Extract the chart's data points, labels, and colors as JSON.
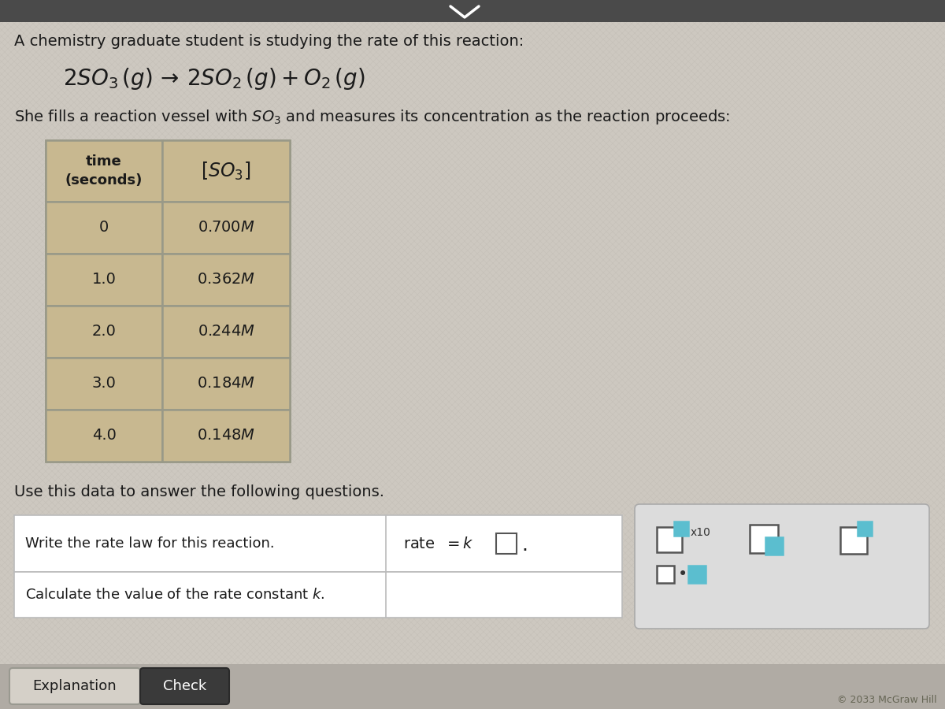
{
  "bg_color": "#cdc8c0",
  "text_color": "#1a1a1a",
  "intro_text": "A chemistry graduate student is studying the rate of this reaction:",
  "table_header_time": "time\n(seconds)",
  "table_data": [
    [
      "0",
      "0.700"
    ],
    [
      "1.0",
      "0.362"
    ],
    [
      "2.0",
      "0.244"
    ],
    [
      "3.0",
      "0.184"
    ],
    [
      "4.0",
      "0.148"
    ]
  ],
  "table_bg": "#c8b890",
  "table_border": "#999988",
  "questions_text": "Use this data to answer the following questions.",
  "question1": "Write the rate law for this reaction.",
  "question2_part1": "Calculate the value of the rate constant ",
  "button1_text": "Explanation",
  "button2_text": "Check",
  "cyan_color": "#5bbecf",
  "copyright_text": "© 2033 McGraw Hill"
}
